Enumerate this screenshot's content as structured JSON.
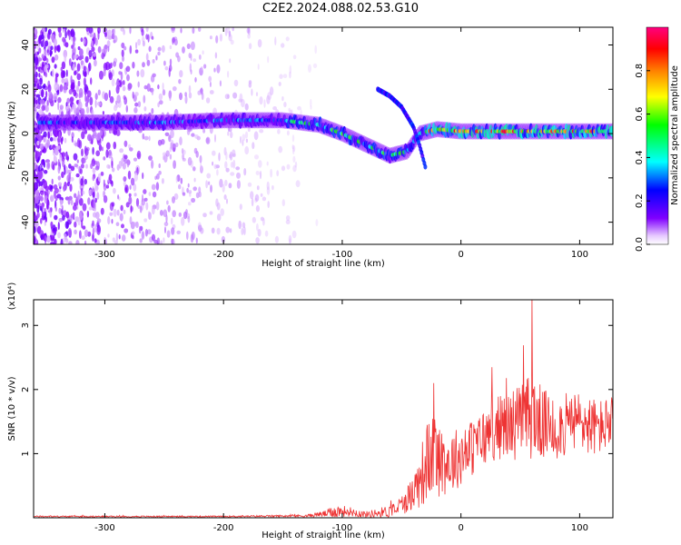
{
  "title": "C2E2.2024.088.02.53.G10",
  "chart_data": [
    {
      "type": "heatmap",
      "title": "C2E2.2024.088.02.53.G10",
      "xlabel": "Height of straight line (km)",
      "ylabel": "Frequency (Hz)",
      "xlim": [
        -360,
        128
      ],
      "ylim": [
        -50,
        48
      ],
      "xticks": [
        -300,
        -200,
        -100,
        0,
        100
      ],
      "yticks": [
        -40,
        -20,
        0,
        20,
        40
      ],
      "colorbar": {
        "label": "Normalized spectral amplitude",
        "range": [
          0,
          1
        ],
        "ticks": [
          "0.0",
          "0.2",
          "0.4",
          "0.6",
          "0.8"
        ],
        "colormap": [
          "#ffffff",
          "#e6c8ff",
          "#8000ff",
          "#0000ff",
          "#00ffff",
          "#00ff00",
          "#ffff00",
          "#ff8000",
          "#ff0000",
          "#ff0080"
        ]
      },
      "ridge": {
        "x": [
          -355,
          -300,
          -250,
          -200,
          -150,
          -120,
          -100,
          -80,
          -60,
          -45,
          -35,
          -20,
          0,
          20,
          50,
          80,
          100,
          128
        ],
        "y": [
          5,
          5,
          5,
          6,
          6,
          4,
          0,
          -5,
          -10,
          -8,
          0,
          2,
          1,
          1,
          1,
          1,
          1,
          1
        ]
      },
      "branch": {
        "x": [
          -70,
          -60,
          -50,
          -40,
          -35,
          -30
        ],
        "y": [
          20,
          17,
          12,
          3,
          -5,
          -15
        ]
      }
    },
    {
      "type": "line",
      "xlabel": "Height of straight line (km)",
      "ylabel": "SNR (10 * v/v)",
      "y_multiplier": "(x10⁴)",
      "xlim": [
        -360,
        128
      ],
      "ylim": [
        0,
        3.4
      ],
      "xticks": [
        -300,
        -200,
        -100,
        0,
        100
      ],
      "yticks": [
        1,
        2,
        3
      ],
      "color": "#ee3333",
      "envelope": {
        "x": [
          -360,
          -200,
          -130,
          -115,
          -105,
          -95,
          -80,
          -60,
          -50,
          -40,
          -30,
          -25,
          -10,
          10,
          30,
          50,
          60,
          70,
          80,
          100,
          115,
          128
        ],
        "mean": [
          0.02,
          0.02,
          0.03,
          0.06,
          0.1,
          0.1,
          0.05,
          0.1,
          0.2,
          0.4,
          0.8,
          1.0,
          0.85,
          1.1,
          1.4,
          1.5,
          1.6,
          1.45,
          1.4,
          1.5,
          1.4,
          1.5
        ],
        "spread": [
          0.01,
          0.01,
          0.02,
          0.05,
          0.1,
          0.08,
          0.05,
          0.1,
          0.15,
          0.3,
          0.6,
          0.7,
          0.5,
          0.45,
          0.5,
          0.6,
          0.7,
          0.55,
          0.5,
          0.5,
          0.45,
          0.4
        ]
      },
      "peak": {
        "x": 60,
        "y": 3.45
      }
    }
  ]
}
